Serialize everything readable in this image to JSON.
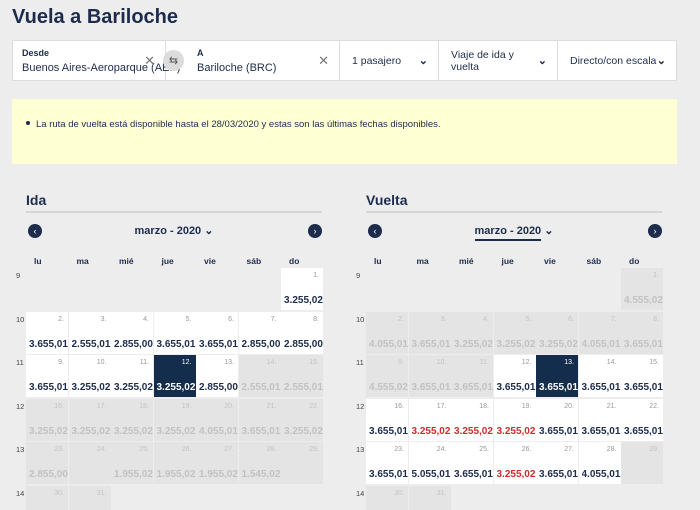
{
  "page": {
    "title": "Vuela a Bariloche"
  },
  "search": {
    "origin_label": "Desde",
    "origin_value": "Buenos Aires-Aeroparque (AEP)",
    "dest_label": "A",
    "dest_value": "Bariloche (BRC)",
    "passengers": "1 pasajero",
    "trip_type": "Viaje de ida y vuelta",
    "stops": "Directo/con escala"
  },
  "notice": {
    "text": "La ruta de vuelta está disponible hasta el 28/03/2020 y estas son las últimas fechas disponibles."
  },
  "weekdays": [
    "lu",
    "ma",
    "mié",
    "jue",
    "vie",
    "sáb",
    "do"
  ],
  "weeks": [
    "9",
    "10",
    "11",
    "12",
    "13",
    "14"
  ],
  "ida": {
    "title": "Ida",
    "month": "marzo - 2020",
    "rows": [
      [
        null,
        null,
        null,
        null,
        null,
        null,
        {
          "d": "1.",
          "p": "3.255,02",
          "s": "ok"
        }
      ],
      [
        {
          "d": "2.",
          "p": "3.655,01",
          "s": "ok"
        },
        {
          "d": "3.",
          "p": "2.555,01",
          "s": "ok"
        },
        {
          "d": "4.",
          "p": "2.855,00",
          "s": "ok"
        },
        {
          "d": "5.",
          "p": "3.655,01",
          "s": "ok"
        },
        {
          "d": "6.",
          "p": "3.655,01",
          "s": "ok"
        },
        {
          "d": "7.",
          "p": "2.855,00",
          "s": "ok"
        },
        {
          "d": "8.",
          "p": "2.855,00",
          "s": "ok"
        }
      ],
      [
        {
          "d": "9.",
          "p": "3.655,01",
          "s": "ok"
        },
        {
          "d": "10.",
          "p": "3.255,02",
          "s": "ok"
        },
        {
          "d": "11.",
          "p": "3.255,02",
          "s": "ok"
        },
        {
          "d": "12.",
          "p": "3.255,02",
          "s": "sel"
        },
        {
          "d": "13.",
          "p": "2.855,00",
          "s": "ok"
        },
        {
          "d": "14.",
          "p": "2.555,01",
          "s": "na"
        },
        {
          "d": "15.",
          "p": "2.555,01",
          "s": "na"
        }
      ],
      [
        {
          "d": "16.",
          "p": "3.255,02",
          "s": "na"
        },
        {
          "d": "17.",
          "p": "3.255,02",
          "s": "na"
        },
        {
          "d": "18.",
          "p": "3.255,02",
          "s": "na"
        },
        {
          "d": "19.",
          "p": "3.255,02",
          "s": "na"
        },
        {
          "d": "20.",
          "p": "4.055,01",
          "s": "na"
        },
        {
          "d": "21.",
          "p": "3.655,01",
          "s": "na"
        },
        {
          "d": "22.",
          "p": "3.255,02",
          "s": "na"
        }
      ],
      [
        {
          "d": "23.",
          "p": "2.855,00",
          "s": "na"
        },
        {
          "d": "24.",
          "p": "",
          "s": "na"
        },
        {
          "d": "25.",
          "p": "1.955,02",
          "s": "na"
        },
        {
          "d": "26.",
          "p": "1.955,02",
          "s": "na"
        },
        {
          "d": "27.",
          "p": "1.955,02",
          "s": "na"
        },
        {
          "d": "28.",
          "p": "1.545,02",
          "s": "na"
        },
        {
          "d": "29.",
          "p": "",
          "s": "na"
        }
      ],
      [
        {
          "d": "30.",
          "p": "",
          "s": "na"
        },
        {
          "d": "31.",
          "p": "",
          "s": "na"
        },
        null,
        null,
        null,
        null,
        null
      ]
    ]
  },
  "vuelta": {
    "title": "Vuelta",
    "month": "marzo - 2020",
    "rows": [
      [
        null,
        null,
        null,
        null,
        null,
        null,
        {
          "d": "1.",
          "p": "4.555,02",
          "s": "na"
        }
      ],
      [
        {
          "d": "2.",
          "p": "4.055,01",
          "s": "na"
        },
        {
          "d": "3.",
          "p": "3.655,01",
          "s": "na"
        },
        {
          "d": "4.",
          "p": "3.255,02",
          "s": "na"
        },
        {
          "d": "5.",
          "p": "3.255,02",
          "s": "na"
        },
        {
          "d": "6.",
          "p": "3.255,02",
          "s": "na"
        },
        {
          "d": "7.",
          "p": "4.055,01",
          "s": "na"
        },
        {
          "d": "8.",
          "p": "3.655,01",
          "s": "na"
        }
      ],
      [
        {
          "d": "9.",
          "p": "4.555,02",
          "s": "na"
        },
        {
          "d": "10.",
          "p": "3.655,01",
          "s": "na"
        },
        {
          "d": "11.",
          "p": "3.655,01",
          "s": "na"
        },
        {
          "d": "12.",
          "p": "3.655,01",
          "s": "ok"
        },
        {
          "d": "13.",
          "p": "3.655,01",
          "s": "sel"
        },
        {
          "d": "14.",
          "p": "3.655,01",
          "s": "ok"
        },
        {
          "d": "15.",
          "p": "3.655,01",
          "s": "ok"
        }
      ],
      [
        {
          "d": "16.",
          "p": "3.655,01",
          "s": "ok"
        },
        {
          "d": "17.",
          "p": "3.255,02",
          "s": "red"
        },
        {
          "d": "18.",
          "p": "3.255,02",
          "s": "red"
        },
        {
          "d": "19.",
          "p": "3.255,02",
          "s": "red"
        },
        {
          "d": "20.",
          "p": "3.655,01",
          "s": "ok"
        },
        {
          "d": "21.",
          "p": "3.655,01",
          "s": "ok"
        },
        {
          "d": "22.",
          "p": "3.655,01",
          "s": "ok"
        }
      ],
      [
        {
          "d": "23.",
          "p": "3.655,01",
          "s": "ok"
        },
        {
          "d": "24.",
          "p": "5.055,01",
          "s": "ok"
        },
        {
          "d": "25.",
          "p": "3.655,01",
          "s": "ok"
        },
        {
          "d": "26.",
          "p": "3.255,02",
          "s": "red"
        },
        {
          "d": "27.",
          "p": "3.655,01",
          "s": "ok"
        },
        {
          "d": "28.",
          "p": "4.055,01",
          "s": "ok"
        },
        {
          "d": "29.",
          "p": "",
          "s": "na"
        }
      ],
      [
        {
          "d": "30.",
          "p": "",
          "s": "na"
        },
        {
          "d": "31.",
          "p": "",
          "s": "na"
        },
        null,
        null,
        null,
        null,
        null
      ]
    ]
  }
}
